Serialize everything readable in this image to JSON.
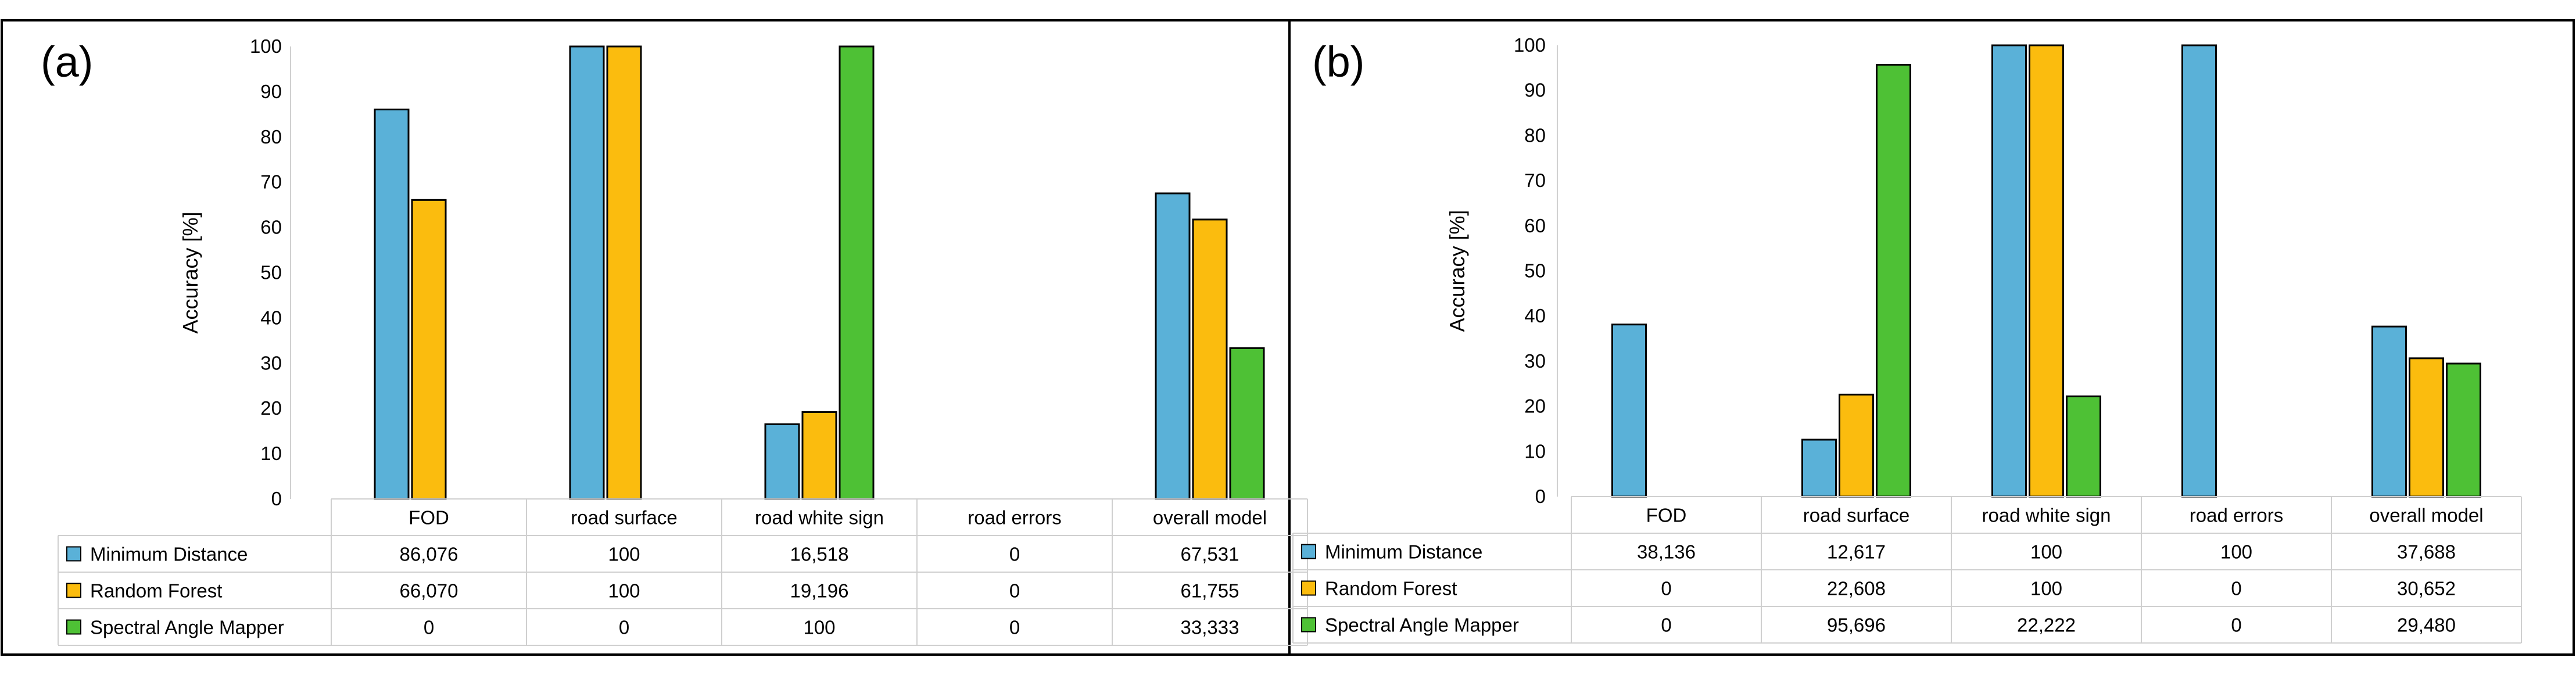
{
  "chart_data": [
    {
      "type": "bar",
      "panel_label": "(a)",
      "categories": [
        "FOD",
        "road surface",
        "road white sign",
        "road errors",
        "overall model"
      ],
      "ylabel": "Accuracy [%]",
      "ylim": [
        0,
        100
      ],
      "yticks": [
        "0",
        "10",
        "20",
        "30",
        "40",
        "50",
        "60",
        "70",
        "80",
        "90",
        "100"
      ],
      "grid": false,
      "legend": "data-table",
      "series": [
        {
          "name": "Minimum Distance",
          "color": "#5ab1d8",
          "values": [
            86.076,
            100,
            16.518,
            0,
            67.531
          ],
          "labels": [
            "86,076",
            "100",
            "16,518",
            "0",
            "67,531"
          ]
        },
        {
          "name": "Random Forest",
          "color": "#fbbc0e",
          "values": [
            66.07,
            100,
            19.196,
            0,
            61.755
          ],
          "labels": [
            "66,070",
            "100",
            "19,196",
            "0",
            "61,755"
          ]
        },
        {
          "name": "Spectral Angle Mapper",
          "color": "#4ec135",
          "values": [
            0,
            0,
            100,
            0,
            33.333
          ],
          "labels": [
            "0",
            "0",
            "100",
            "0",
            "33,333"
          ]
        }
      ]
    },
    {
      "type": "bar",
      "panel_label": "(b)",
      "categories": [
        "FOD",
        "road surface",
        "road white sign",
        "road errors",
        "overall model"
      ],
      "ylabel": "Accuracy [%]",
      "ylim": [
        0,
        100
      ],
      "yticks": [
        "0",
        "10",
        "20",
        "30",
        "40",
        "50",
        "60",
        "70",
        "80",
        "90",
        "100"
      ],
      "grid": false,
      "legend": "data-table",
      "series": [
        {
          "name": "Minimum Distance",
          "color": "#5ab1d8",
          "values": [
            38.136,
            12.617,
            100,
            100,
            37.688
          ],
          "labels": [
            "38,136",
            "12,617",
            "100",
            "100",
            "37,688"
          ]
        },
        {
          "name": "Random Forest",
          "color": "#fbbc0e",
          "values": [
            0,
            22.608,
            100,
            0,
            30.652
          ],
          "labels": [
            "0",
            "22,608",
            "100",
            "0",
            "30,652"
          ]
        },
        {
          "name": "Spectral Angle Mapper",
          "color": "#4ec135",
          "values": [
            0,
            95.696,
            22.222,
            0,
            29.48
          ],
          "labels": [
            "0",
            "95,696",
            "22,222",
            "0",
            "29,480"
          ]
        }
      ]
    }
  ]
}
